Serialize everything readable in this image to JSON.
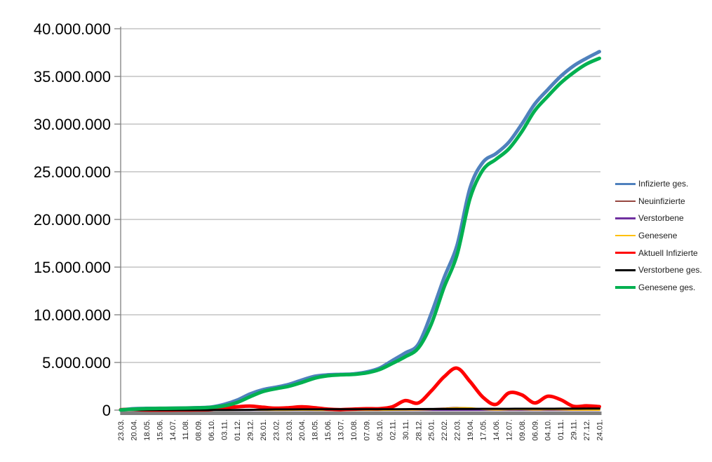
{
  "chart_data": {
    "type": "line",
    "title": "",
    "xlabel": "",
    "ylabel": "",
    "ylim": [
      0,
      40000000
    ],
    "y_tick_step": 5000000,
    "y_tick_labels": [
      "0",
      "5.000.000",
      "10.000.000",
      "15.000.000",
      "20.000.000",
      "25.000.000",
      "30.000.000",
      "35.000.000",
      "40.000.000"
    ],
    "grid": true,
    "legend_position": "right",
    "categories": [
      "23.03.",
      "20.04.",
      "18.05.",
      "15.06.",
      "14.07.",
      "11.08.",
      "08.09.",
      "06.10.",
      "03.11.",
      "01.12.",
      "29.12.",
      "26.01.",
      "23.02.",
      "23.03.",
      "20.04.",
      "18.05.",
      "15.06.",
      "13.07.",
      "10.08.",
      "07.09.",
      "05.10.",
      "02.11.",
      "30.11.",
      "28.12.",
      "25.01.",
      "22.02.",
      "22.03.",
      "19.04.",
      "17.05.",
      "14.06.",
      "12.07.",
      "09.08.",
      "06.09.",
      "04.10.",
      "01.11.",
      "29.11.",
      "27.12.",
      "24.01."
    ],
    "series": [
      {
        "name": "Infizierte ges.",
        "color": "#4F81BD",
        "line_width": 5,
        "values": [
          30000,
          150000,
          180000,
          190000,
          200000,
          220000,
          260000,
          320000,
          600000,
          1050000,
          1700000,
          2150000,
          2400000,
          2700000,
          3150000,
          3550000,
          3700000,
          3750000,
          3800000,
          4000000,
          4400000,
          5200000,
          6000000,
          6900000,
          10100000,
          13900000,
          17300000,
          23300000,
          26000000,
          26900000,
          28100000,
          30000000,
          32100000,
          33600000,
          35000000,
          36100000,
          36900000,
          37600000
        ]
      },
      {
        "name": "Neuinfizierte",
        "color": "#964640",
        "line_width": 2.5,
        "values": [
          3000,
          2000,
          500,
          300,
          300,
          800,
          1500,
          3000,
          15000,
          18000,
          20000,
          12000,
          8000,
          15000,
          20000,
          8000,
          2000,
          1000,
          4000,
          10000,
          8000,
          25000,
          50000,
          40000,
          120000,
          180000,
          250000,
          180000,
          60000,
          40000,
          90000,
          70000,
          40000,
          90000,
          50000,
          25000,
          30000,
          15000
        ]
      },
      {
        "name": "Verstorbene",
        "color": "#7030A0",
        "line_width": 2.5,
        "values": [
          50,
          100,
          50,
          20,
          10,
          10,
          20,
          30,
          150,
          400,
          600,
          700,
          400,
          250,
          250,
          200,
          100,
          50,
          30,
          60,
          80,
          150,
          300,
          350,
          200,
          200,
          250,
          250,
          150,
          100,
          100,
          150,
          100,
          150,
          150,
          150,
          180,
          120
        ]
      },
      {
        "name": "Genesene",
        "color": "#FFC000",
        "line_width": 2.5,
        "values": [
          2000,
          3000,
          1000,
          400,
          300,
          600,
          1200,
          2000,
          8000,
          15000,
          18000,
          15000,
          9000,
          10000,
          18000,
          12000,
          4000,
          1500,
          3000,
          8000,
          8000,
          15000,
          35000,
          45000,
          80000,
          150000,
          220000,
          220000,
          90000,
          40000,
          70000,
          80000,
          45000,
          70000,
          65000,
          30000,
          28000,
          18000
        ]
      },
      {
        "name": "Aktuell Infizierte",
        "color": "#FF0000",
        "line_width": 5,
        "values": [
          50000,
          60000,
          20000,
          10000,
          10000,
          20000,
          30000,
          50000,
          250000,
          350000,
          420000,
          300000,
          200000,
          250000,
          350000,
          250000,
          100000,
          50000,
          100000,
          150000,
          150000,
          350000,
          1000000,
          750000,
          2000000,
          3500000,
          4400000,
          3000000,
          1350000,
          600000,
          1800000,
          1600000,
          750000,
          1450000,
          1100000,
          400000,
          450000,
          370000
        ]
      },
      {
        "name": "Verstorbene ges.",
        "color": "#000000",
        "line_width": 3,
        "values": [
          500,
          5000,
          8000,
          9000,
          9000,
          9200,
          9400,
          9600,
          11000,
          17000,
          32000,
          53000,
          69000,
          75000,
          81000,
          86000,
          90000,
          91000,
          92000,
          93000,
          94000,
          96000,
          101000,
          111000,
          117000,
          121000,
          127000,
          133000,
          138000,
          140000,
          142000,
          144000,
          147000,
          150000,
          153000,
          156000,
          161000,
          165000
        ]
      },
      {
        "name": "Genesene ges.",
        "color": "#00B050",
        "line_width": 5,
        "values": [
          20000,
          100000,
          160000,
          180000,
          190000,
          210000,
          240000,
          290000,
          450000,
          800000,
          1400000,
          1950000,
          2250000,
          2500000,
          2900000,
          3350000,
          3600000,
          3700000,
          3750000,
          3900000,
          4250000,
          4900000,
          5600000,
          6500000,
          9000000,
          12900000,
          16300000,
          22200000,
          25200000,
          26300000,
          27400000,
          29200000,
          31400000,
          32900000,
          34300000,
          35400000,
          36300000,
          36900000
        ]
      }
    ],
    "style": {
      "gridline_color": "#A6A6A6",
      "axis_color": "#808080",
      "baseline_bar_color": "#808080",
      "background": "#FFFFFF"
    }
  }
}
